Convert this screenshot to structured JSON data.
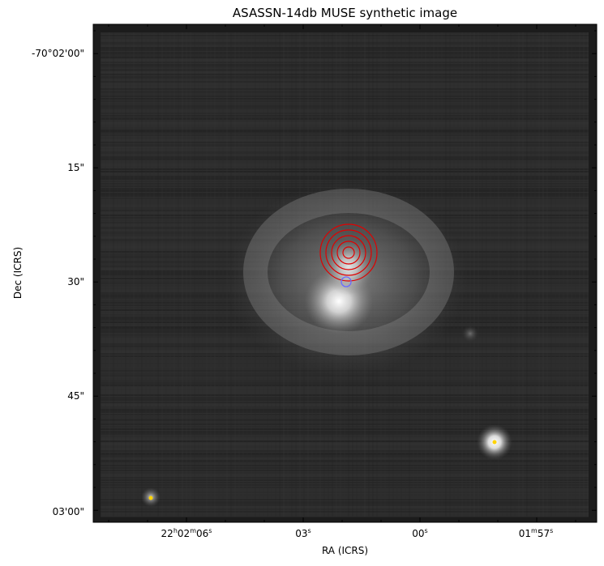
{
  "title": "ASASSN-14db MUSE synthetic image",
  "axes": {
    "xlabel": "RA (ICRS)",
    "ylabel": "Dec (ICRS)",
    "x_ticks": [
      {
        "h": "22",
        "m": "02",
        "s": "06",
        "format": "hms"
      },
      {
        "s": "03",
        "format": "s"
      },
      {
        "s": "00",
        "format": "s"
      },
      {
        "m": "01",
        "s": "57",
        "format": "ms"
      }
    ],
    "y_ticks": [
      "-70°02'00\"",
      "15\"",
      "30\"",
      "45\"",
      "03'00\""
    ]
  },
  "colors": {
    "contours": "#e00000",
    "blue_marker": "#6a6aff",
    "yellow_markers": "#ffd400",
    "colormap": "grayscale"
  },
  "contour_count": 5
}
